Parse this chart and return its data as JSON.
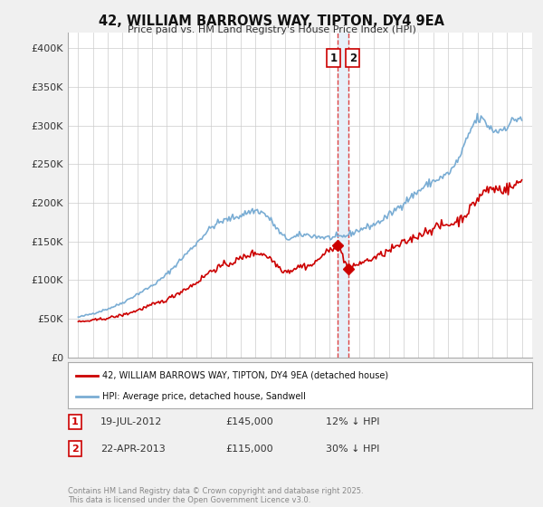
{
  "title": "42, WILLIAM BARROWS WAY, TIPTON, DY4 9EA",
  "subtitle": "Price paid vs. HM Land Registry's House Price Index (HPI)",
  "legend_line1": "42, WILLIAM BARROWS WAY, TIPTON, DY4 9EA (detached house)",
  "legend_line2": "HPI: Average price, detached house, Sandwell",
  "footer": "Contains HM Land Registry data © Crown copyright and database right 2025.\nThis data is licensed under the Open Government Licence v3.0.",
  "ann1_x": 2012.55,
  "ann2_x": 2013.3,
  "ann1_y": 145000,
  "ann2_y": 115000,
  "ann1_label": "1",
  "ann2_label": "2",
  "ann1_date": "19-JUL-2012",
  "ann2_date": "22-APR-2013",
  "ann1_price": "£145,000",
  "ann2_price": "£115,000",
  "ann1_hpi": "12% ↓ HPI",
  "ann2_hpi": "30% ↓ HPI",
  "red_color": "#cc0000",
  "blue_color": "#7aadd4",
  "vline_color": "#dd4444",
  "vband_color": "#e8f0f8",
  "grid_color": "#cccccc",
  "bg_color": "#f0f0f0",
  "plot_bg": "#ffffff",
  "legend_bg": "#ffffff",
  "ylim_min": 0,
  "ylim_max": 420000,
  "xlim_min": 1994.3,
  "xlim_max": 2025.7,
  "yticks": [
    0,
    50000,
    100000,
    150000,
    200000,
    250000,
    300000,
    350000,
    400000
  ],
  "ytick_labels": [
    "£0",
    "£50K",
    "£100K",
    "£150K",
    "£200K",
    "£250K",
    "£300K",
    "£350K",
    "£400K"
  ]
}
